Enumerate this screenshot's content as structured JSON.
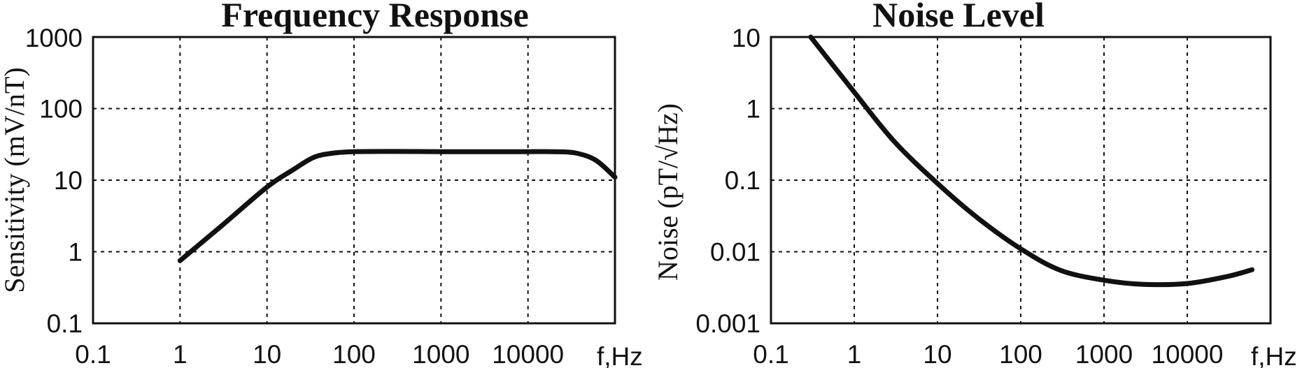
{
  "chart_data": [
    {
      "type": "line",
      "title": "Frequency Response",
      "xlabel": "f,Hz",
      "ylabel": "Sensitivity (mV/nT)",
      "x_scale": "log",
      "y_scale": "log",
      "xlim": [
        0.1,
        100000
      ],
      "ylim": [
        0.1,
        1000
      ],
      "x_tick_labels": [
        "0.1",
        "1",
        "10",
        "100",
        "1000",
        "10000"
      ],
      "y_tick_labels": [
        "0.1",
        "1",
        "10",
        "100",
        "1000"
      ],
      "grid": true,
      "series": [
        {
          "x": [
            1,
            3,
            10,
            20,
            35,
            60,
            100,
            300,
            1000,
            3000,
            10000,
            20000,
            35000,
            60000,
            100000
          ],
          "y": [
            0.75,
            2.3,
            8,
            14,
            21,
            24,
            25,
            25.2,
            25,
            25,
            25,
            25,
            24,
            19,
            11
          ]
        }
      ]
    },
    {
      "type": "line",
      "title": "Noise Level",
      "xlabel": "f,Hz",
      "ylabel": "Noise (pT/√Hz)",
      "x_scale": "log",
      "y_scale": "log",
      "xlim": [
        0.1,
        100000
      ],
      "ylim": [
        0.001,
        10
      ],
      "x_tick_labels": [
        "0.1",
        "1",
        "10",
        "100",
        "1000",
        "10000"
      ],
      "y_tick_labels": [
        "10",
        "1",
        "0.1",
        "0.01",
        "0.001"
      ],
      "grid": true,
      "series": [
        {
          "x": [
            0.3,
            1,
            3,
            10,
            30,
            100,
            300,
            1000,
            3000,
            10000,
            30000,
            60000
          ],
          "y": [
            10,
            1.7,
            0.35,
            0.09,
            0.03,
            0.011,
            0.0055,
            0.004,
            0.0035,
            0.0036,
            0.0045,
            0.0056
          ]
        }
      ]
    }
  ]
}
